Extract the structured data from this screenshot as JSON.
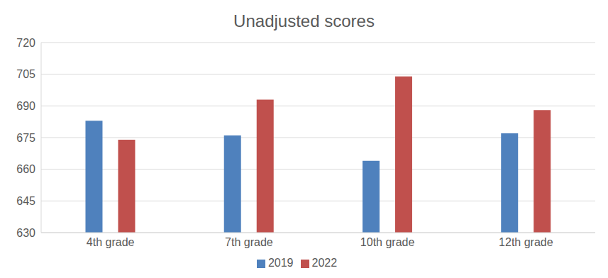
{
  "chart_data": {
    "type": "bar",
    "title": "Unadjusted scores",
    "categories": [
      "4th grade",
      "7th grade",
      "10th grade",
      "12th grade"
    ],
    "series": [
      {
        "name": "2019",
        "color": "#4f81bd",
        "values": [
          683,
          676,
          664,
          677
        ]
      },
      {
        "name": "2022",
        "color": "#c0504d",
        "values": [
          674,
          693,
          704,
          688
        ]
      }
    ],
    "ylim": [
      630,
      720
    ],
    "yticks": [
      630,
      645,
      660,
      675,
      690,
      705,
      720
    ],
    "grid": true,
    "legend": "bottom"
  }
}
